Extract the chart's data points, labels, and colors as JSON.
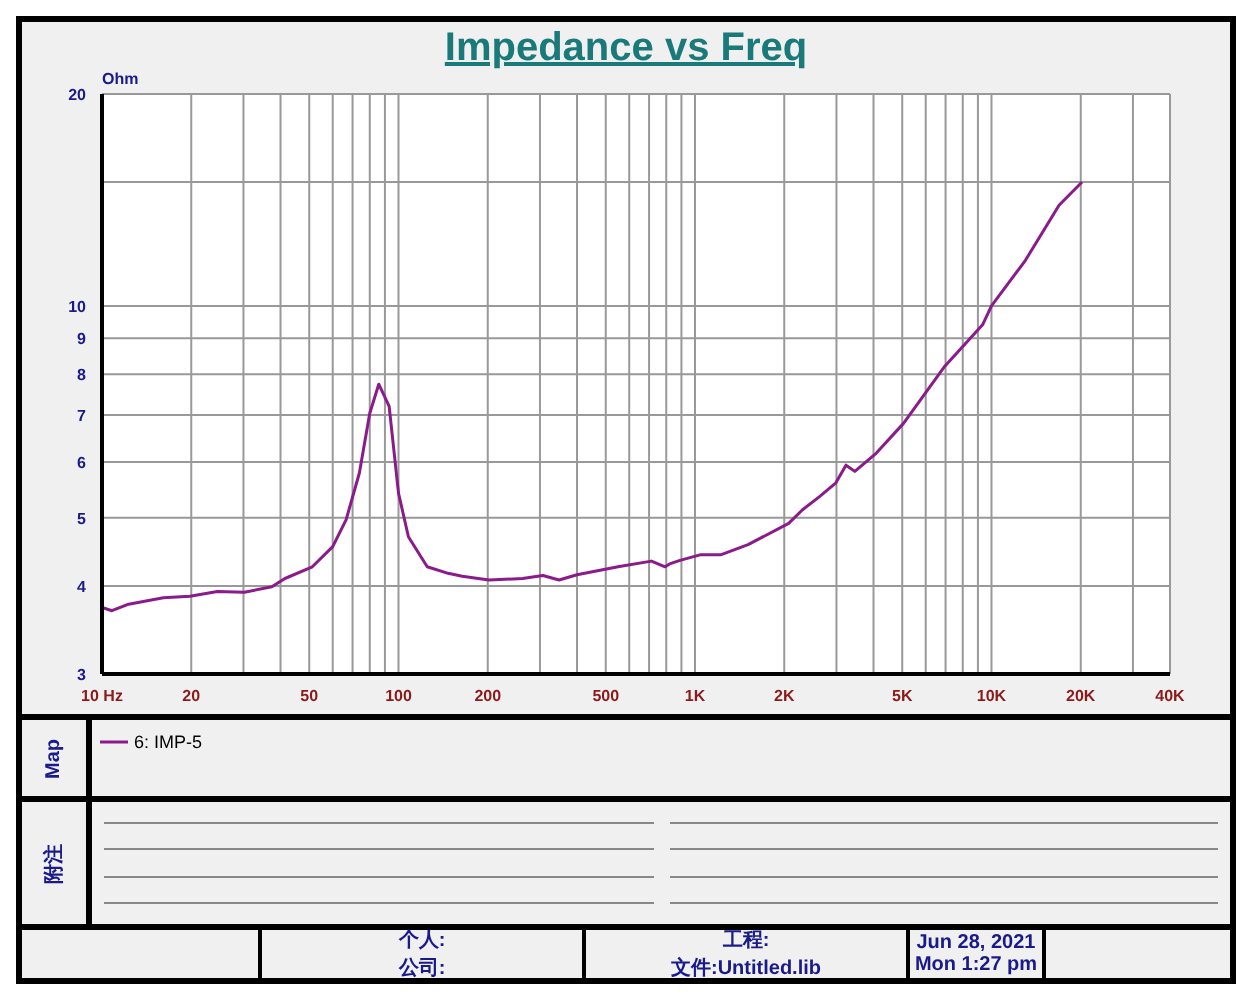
{
  "chart_data": {
    "type": "line",
    "title": "Impedance vs Freq",
    "ylabel": "Ohm",
    "log": "xy",
    "grid": true,
    "legend": "bottom",
    "marker": "none",
    "line_style": "solid",
    "xlim": [
      10,
      40000
    ],
    "ylim": [
      3,
      20
    ],
    "xticks": [
      {
        "value": 10,
        "label": "10  Hz"
      },
      20,
      {
        "value": 30,
        "label": null
      },
      {
        "value": 40,
        "label": null
      },
      50,
      {
        "value": 60,
        "label": null
      },
      {
        "value": 70,
        "label": null
      },
      {
        "value": 80,
        "label": null
      },
      {
        "value": 90,
        "label": null
      },
      100,
      200,
      {
        "value": 300,
        "label": null
      },
      {
        "value": 400,
        "label": null
      },
      500,
      {
        "value": 600,
        "label": null
      },
      {
        "value": 700,
        "label": null
      },
      {
        "value": 800,
        "label": null
      },
      {
        "value": 900,
        "label": null
      },
      {
        "value": 1000,
        "label": "1K"
      },
      {
        "value": 2000,
        "label": "2K"
      },
      {
        "value": 3000,
        "label": null
      },
      {
        "value": 4000,
        "label": null
      },
      {
        "value": 5000,
        "label": "5K"
      },
      {
        "value": 6000,
        "label": null
      },
      {
        "value": 7000,
        "label": null
      },
      {
        "value": 8000,
        "label": null
      },
      {
        "value": 9000,
        "label": null
      },
      {
        "value": 10000,
        "label": "10K"
      },
      {
        "value": 20000,
        "label": "20K"
      },
      {
        "value": 30000,
        "label": null
      },
      {
        "value": 40000,
        "label": "40K"
      }
    ],
    "yticks": [
      3,
      4,
      5,
      6,
      7,
      8,
      9,
      10,
      {
        "value": 15,
        "label": null
      },
      20
    ],
    "series": [
      {
        "name": "6: IMP-5",
        "color": "#8b1a8b",
        "x": [
          10,
          10.8,
          12.3,
          16.1,
          19.8,
          24.5,
          30.2,
          37.4,
          41.4,
          51.2,
          60,
          66.6,
          73.8,
          80,
          85.8,
          93,
          100,
          108,
          125,
          147,
          164,
          202,
          262,
          307,
          348,
          400,
          550,
          713,
          793,
          821,
          890,
          1040,
          1220,
          1510,
          2070,
          2300,
          2630,
          2980,
          3230,
          3460,
          4090,
          5050,
          6960,
          9330,
          10000,
          13000,
          16900,
          20200
        ],
        "values": [
          3.73,
          3.69,
          3.77,
          3.85,
          3.87,
          3.93,
          3.92,
          3.99,
          4.1,
          4.26,
          4.55,
          4.97,
          5.79,
          7.04,
          7.74,
          7.2,
          5.42,
          4.7,
          4.26,
          4.17,
          4.13,
          4.08,
          4.1,
          4.14,
          4.08,
          4.15,
          4.26,
          4.34,
          4.26,
          4.3,
          4.35,
          4.43,
          4.43,
          4.58,
          4.91,
          5.13,
          5.36,
          5.6,
          5.94,
          5.82,
          6.18,
          6.81,
          8.21,
          9.4,
          10,
          11.6,
          13.9,
          15
        ]
      }
    ],
    "annotations": [
      "Map",
      "附注",
      "个人:",
      "公司:",
      "工程:",
      "文件:Untitled.lib",
      "Jun 28, 2021",
      "Mon  1:27 pm"
    ]
  }
}
